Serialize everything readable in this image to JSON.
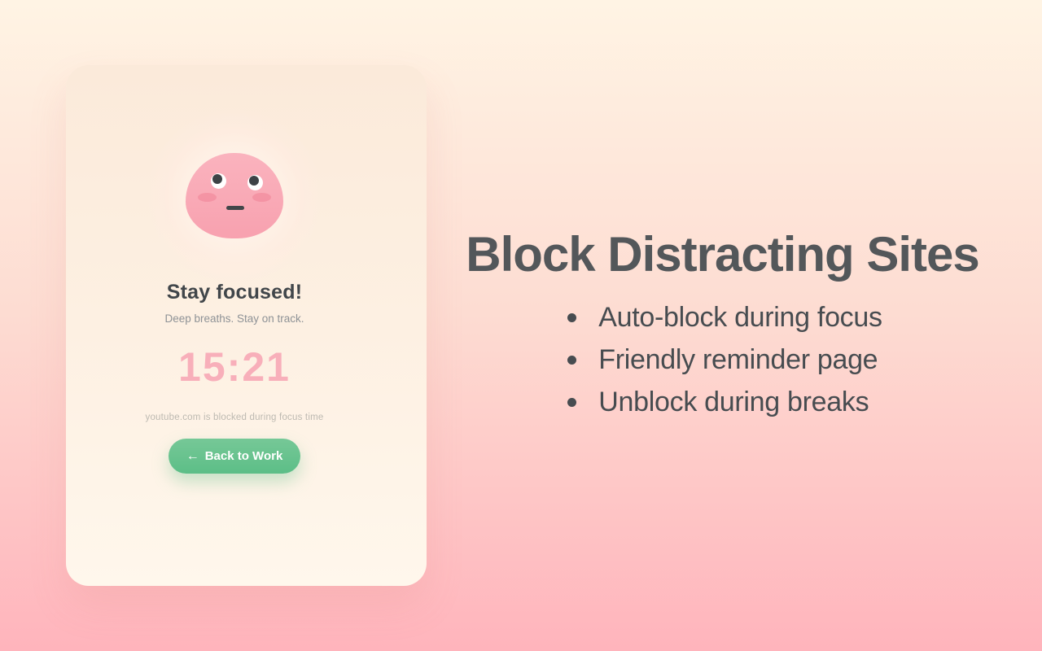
{
  "page": {
    "background": {
      "top": "#FFF4E4",
      "middle": "#FDDCD2",
      "bottom": "#FFB4BC"
    }
  },
  "blocked_card": {
    "mascot": {
      "name": "calm-pink-blob-face",
      "face_color_top": "#FAB3BE",
      "face_color_bottom": "#F8A1AF"
    },
    "title": "Stay focused!",
    "subtitle": "Deep breaths. Stay on track.",
    "timer": "15:21",
    "timer_color": "#F8AFBA",
    "blocked_note": "youtube.com is blocked during focus time",
    "back_button": {
      "arrow": "←",
      "label": "Back to Work",
      "color_top": "#76C897",
      "color_bottom": "#5CBE87"
    }
  },
  "promo": {
    "heading": "Block Distracting Sites",
    "heading_color": "#53575A",
    "bullets": [
      "Auto-block during focus",
      "Friendly reminder page",
      "Unblock during breaks"
    ]
  }
}
